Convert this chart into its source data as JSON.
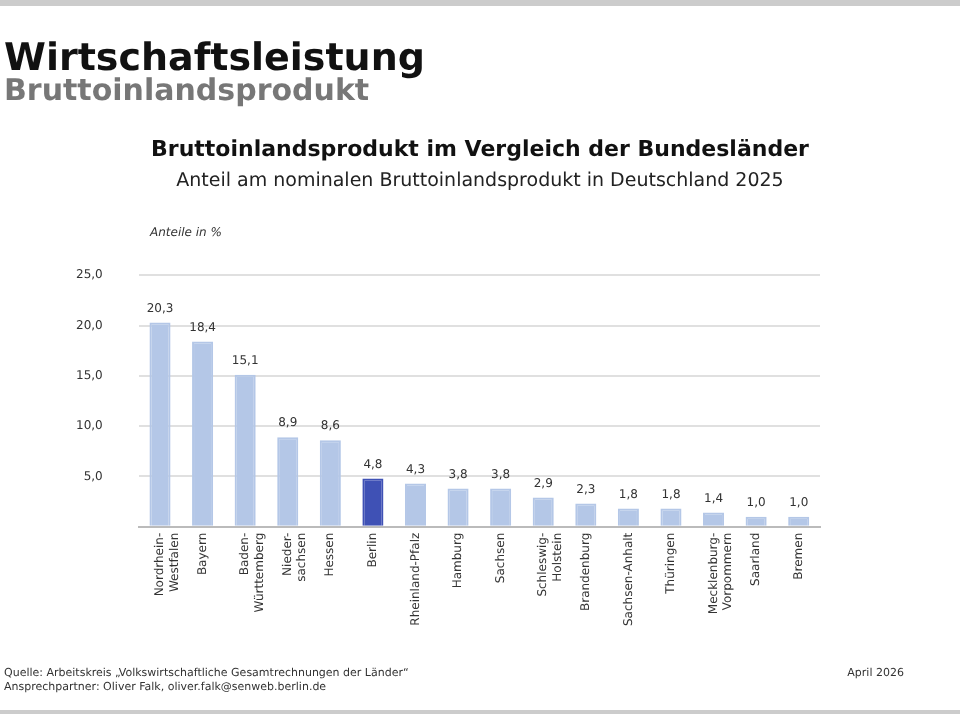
{
  "chart_data": {
    "type": "bar",
    "title": "Wirtschaftsleistung",
    "subtitle": "Bruttoinlandsprodukt",
    "annotations": [
      "Bruttoinlandsprodukt im Vergleich der Bundesländer",
      "Anteil am nominalen Bruttoinlandsprodukt in Deutschland 2025",
      "Quelle: Arbeitskreis „Volkswirtschaftliche Gesamtrechnungen der Länder“\nAnsprechpartner: Oliver Falk, oliver.falk@senweb.berlin.de",
      "April 2026"
    ],
    "ylabel": "Anteile in %",
    "categories": [
      "Nordrhein-\nWestfalen",
      "Bayern",
      "Baden-\nWürttemberg",
      "Nieder-\nsachsen",
      "Hessen",
      "Berlin",
      "Rheinland-Pfalz",
      "Hamburg",
      "Sachsen",
      "Schleswig-\nHolstein",
      "Brandenburg",
      "Sachsen-Anhalt",
      "Thüringen",
      "Mecklenburg-\nVorpommern",
      "Saarland",
      "Bremen"
    ],
    "values": [
      20.3,
      18.4,
      15.1,
      8.9,
      8.6,
      4.8,
      4.3,
      3.8,
      3.8,
      2.9,
      2.3,
      1.8,
      1.8,
      1.4,
      1.0,
      1.0
    ],
    "value_labels": [
      "20,3",
      "18,4",
      "15,1",
      "8,9",
      "8,6",
      "4,8",
      "4,3",
      "3,8",
      "3,8",
      "2,9",
      "2,3",
      "1,8",
      "1,8",
      "1,4",
      "1,0",
      "1,0"
    ],
    "colors": [
      "#b4c7e7",
      "#b4c7e7",
      "#b4c7e7",
      "#b4c7e7",
      "#b4c7e7",
      "#3f51b5",
      "#b4c7e7",
      "#b4c7e7",
      "#b4c7e7",
      "#b4c7e7",
      "#b4c7e7",
      "#b4c7e7",
      "#b4c7e7",
      "#b4c7e7",
      "#b4c7e7",
      "#b4c7e7"
    ],
    "ylim": [
      0,
      25
    ],
    "yticks": [
      {
        "value": 0,
        "label": null
      },
      {
        "value": 5,
        "label": "5,0"
      },
      {
        "value": 10,
        "label": "10,0"
      },
      {
        "value": 15,
        "label": "15,0"
      },
      {
        "value": 20,
        "label": "20,0"
      },
      {
        "value": 25,
        "label": "25,0"
      }
    ],
    "grid": "y",
    "legend": false
  }
}
